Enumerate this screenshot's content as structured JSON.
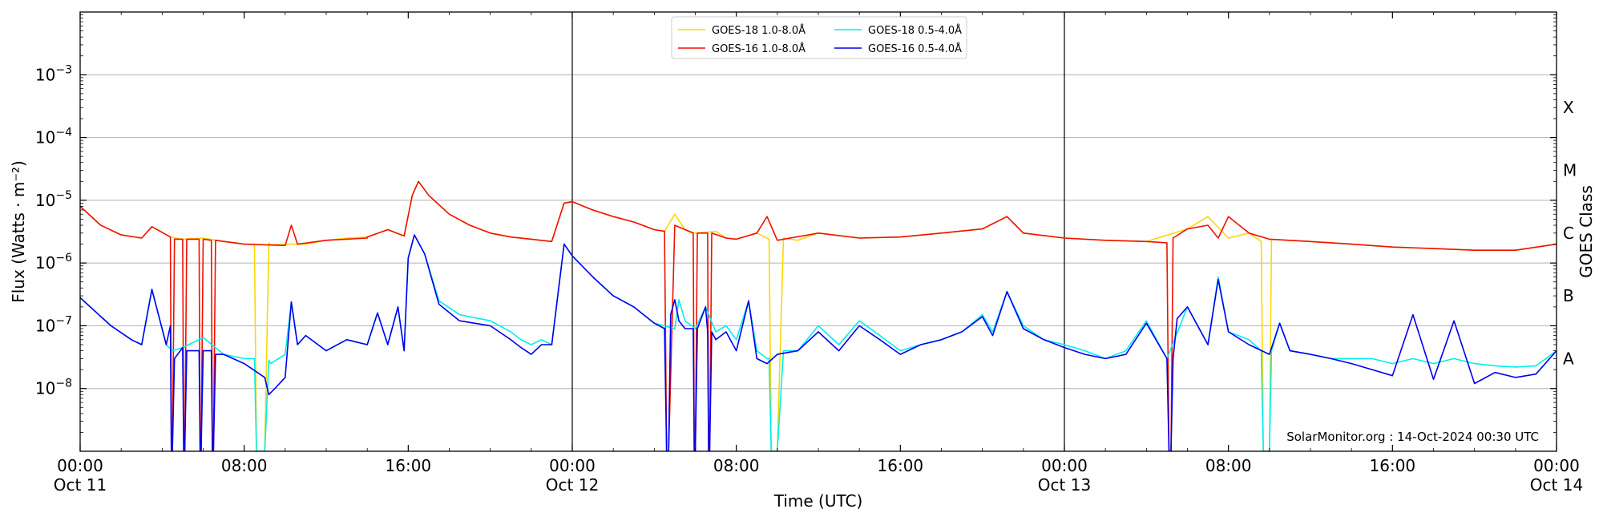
{
  "chart_data": {
    "type": "line",
    "ylabel": "Flux (Watts · m⁻²)",
    "xlabel": "Time (UTC)",
    "right_ylabel": "GOES Class",
    "y_scale": "log",
    "ylim": [
      1e-09,
      0.01
    ],
    "xlim": [
      "2024-10-11 00:00",
      "2024-10-14 00:00"
    ],
    "grid": "horizontal major decades",
    "legend_position": "top-center",
    "y_ticks": [
      {
        "value": 1e-08,
        "base": "10",
        "exp": "−8"
      },
      {
        "value": 1e-07,
        "base": "10",
        "exp": "−7"
      },
      {
        "value": 1e-06,
        "base": "10",
        "exp": "−6"
      },
      {
        "value": 1e-05,
        "base": "10",
        "exp": "−5"
      },
      {
        "value": 0.0001,
        "base": "10",
        "exp": "−4"
      },
      {
        "value": 0.001,
        "base": "10",
        "exp": "−3"
      }
    ],
    "x_ticks": [
      {
        "hours": 0,
        "time": "00:00",
        "date": "Oct 11"
      },
      {
        "hours": 8,
        "time": "08:00",
        "date": ""
      },
      {
        "hours": 16,
        "time": "16:00",
        "date": ""
      },
      {
        "hours": 24,
        "time": "00:00",
        "date": "Oct 12"
      },
      {
        "hours": 32,
        "time": "08:00",
        "date": ""
      },
      {
        "hours": 40,
        "time": "16:00",
        "date": ""
      },
      {
        "hours": 48,
        "time": "00:00",
        "date": "Oct 13"
      },
      {
        "hours": 56,
        "time": "08:00",
        "date": ""
      },
      {
        "hours": 64,
        "time": "16:00",
        "date": ""
      },
      {
        "hours": 72,
        "time": "00:00",
        "date": "Oct 14"
      }
    ],
    "day_boundaries": [
      24,
      48
    ],
    "goes_classes": [
      {
        "label": "A",
        "value": 3e-08
      },
      {
        "label": "B",
        "value": 3e-07
      },
      {
        "label": "C",
        "value": 3e-06
      },
      {
        "label": "M",
        "value": 3e-05
      },
      {
        "label": "X",
        "value": 0.0003
      }
    ],
    "credit": "SolarMonitor.org : 14-Oct-2024 00:30 UTC",
    "series": [
      {
        "name": "GOES-18 1.0-8.0Å",
        "color": "#ffd700",
        "x_hours": [
          0.0,
          1.0,
          2.0,
          3.0,
          3.5,
          4.4,
          5.0,
          6.0,
          7.0,
          8.0,
          8.5,
          8.6,
          9.0,
          9.2,
          9.3,
          10.0,
          11.0,
          12.0,
          13.0,
          14.0,
          15.0,
          15.8,
          16.2,
          16.5,
          17.0,
          18.0,
          19.0,
          20.0,
          21.0,
          22.0,
          23.0,
          23.6,
          24.0,
          25.0,
          26.0,
          27.0,
          28.0,
          28.5,
          29.0,
          29.5,
          30.0,
          31.0,
          31.5,
          32.0,
          33.0,
          33.6,
          33.7,
          34.0,
          34.3,
          35.0,
          36.0,
          38.0,
          40.0,
          42.0,
          44.0,
          45.2,
          46.0,
          48.0,
          50.0,
          52.0,
          54.0,
          55.0,
          56.0,
          57.0,
          57.6,
          57.7,
          58.0,
          58.1,
          60.0,
          62.0,
          64.0,
          66.0,
          68.0,
          70.0,
          72.0
        ],
        "y_flux": [
          8e-06,
          4e-06,
          2.8e-06,
          2.5e-06,
          3.8e-06,
          2.6e-06,
          2.4e-06,
          2.5e-06,
          2.2e-06,
          2e-06,
          2e-06,
          1e-09,
          1e-09,
          2.1e-06,
          1.95e-06,
          2e-06,
          2e-06,
          2.3e-06,
          2.5e-06,
          2.6e-06,
          3.4e-06,
          2.7e-06,
          1.2e-05,
          2e-05,
          1.2e-05,
          6e-06,
          4e-06,
          3e-06,
          2.6e-06,
          2.4e-06,
          2.2e-06,
          9e-06,
          9.5e-06,
          7e-06,
          5.5e-06,
          4.5e-06,
          3.4e-06,
          3.2e-06,
          6e-06,
          3.4e-06,
          3e-06,
          3.2e-06,
          2.5e-06,
          2.4e-06,
          3e-06,
          2.4e-06,
          1e-09,
          1e-09,
          2.5e-06,
          2.3e-06,
          3e-06,
          2.5e-06,
          2.6e-06,
          3e-06,
          3.5e-06,
          5.5e-06,
          3e-06,
          2.5e-06,
          2.3e-06,
          2.2e-06,
          3.5e-06,
          5.5e-06,
          2.5e-06,
          3e-06,
          2.2e-06,
          1e-09,
          1e-09,
          2.4e-06,
          2.2e-06,
          2e-06,
          1.8e-06,
          1.7e-06,
          1.6e-06,
          1.6e-06,
          2e-06
        ]
      },
      {
        "name": "GOES-16 1.0-8.0Å",
        "color": "#ee1100",
        "x_hours": [
          0.0,
          1.0,
          2.0,
          3.0,
          3.5,
          4.4,
          4.45,
          4.5,
          4.6,
          5.0,
          5.05,
          5.1,
          5.2,
          5.8,
          5.85,
          5.9,
          6.0,
          6.4,
          6.45,
          6.5,
          6.6,
          8.0,
          10.0,
          10.3,
          10.6,
          12.0,
          14.0,
          14.0,
          15.0,
          15.8,
          16.2,
          16.5,
          17.0,
          18.0,
          19.0,
          20.0,
          21.0,
          22.0,
          23.0,
          23.6,
          24.0,
          25.0,
          26.0,
          27.0,
          28.0,
          28.5,
          28.6,
          28.7,
          29.0,
          29.0,
          29.5,
          29.9,
          29.95,
          30.0,
          30.1,
          30.6,
          30.65,
          30.7,
          30.8,
          31.5,
          32.0,
          33.0,
          33.5,
          34.0,
          36.0,
          38.0,
          40.0,
          42.0,
          44.0,
          45.2,
          46.0,
          48.0,
          50.0,
          52.0,
          53.0,
          53.1,
          53.2,
          53.3,
          54.0,
          55.0,
          55.5,
          56.0,
          57.0,
          58.0,
          60.0,
          62.0,
          64.0,
          66.0,
          68.0,
          70.0,
          72.0
        ],
        "y_flux": [
          8e-06,
          4e-06,
          2.8e-06,
          2.5e-06,
          3.8e-06,
          2.6e-06,
          1e-09,
          1e-09,
          2.4e-06,
          2.4e-06,
          1e-09,
          1e-09,
          2.4e-06,
          2.4e-06,
          1e-09,
          1e-09,
          2.4e-06,
          2.3e-06,
          1e-09,
          1e-09,
          2.3e-06,
          2e-06,
          1.9e-06,
          4e-06,
          2e-06,
          2.3e-06,
          2.5e-06,
          2.6e-06,
          3.4e-06,
          2.7e-06,
          1.2e-05,
          2e-05,
          1.2e-05,
          6e-06,
          4e-06,
          3e-06,
          2.6e-06,
          2.4e-06,
          2.2e-06,
          9e-06,
          9.5e-06,
          7e-06,
          5.5e-06,
          4.5e-06,
          3.4e-06,
          3.2e-06,
          1e-09,
          1e-09,
          4e-06,
          4e-06,
          3.4e-06,
          3e-06,
          1e-09,
          1e-09,
          3e-06,
          3e-06,
          1e-09,
          1e-09,
          3e-06,
          2.5e-06,
          2.4e-06,
          3e-06,
          5.5e-06,
          2.3e-06,
          3e-06,
          2.5e-06,
          2.6e-06,
          3e-06,
          3.5e-06,
          5.5e-06,
          3e-06,
          2.5e-06,
          2.3e-06,
          2.2e-06,
          2.1e-06,
          1e-09,
          1e-09,
          2.5e-06,
          3.5e-06,
          4e-06,
          2.5e-06,
          5.5e-06,
          3e-06,
          2.4e-06,
          2.2e-06,
          2e-06,
          1.8e-06,
          1.7e-06,
          1.6e-06,
          1.6e-06,
          2e-06
        ]
      },
      {
        "name": "GOES-18 0.5-4.0Å",
        "color": "#00eeee",
        "x_hours": [
          0.0,
          1.5,
          2.5,
          3.0,
          3.5,
          4.2,
          4.5,
          5.0,
          6.0,
          7.0,
          8.0,
          8.5,
          8.6,
          9.0,
          9.2,
          9.3,
          10.0,
          10.3,
          10.6,
          11.0,
          12.0,
          13.0,
          14.0,
          14.5,
          15.0,
          15.5,
          15.8,
          16.0,
          16.3,
          16.8,
          17.5,
          18.5,
          20.0,
          21.0,
          21.5,
          22.0,
          22.5,
          23.0,
          23.6,
          24.0,
          25.0,
          26.0,
          27.0,
          28.0,
          29.0,
          29.2,
          29.5,
          30.0,
          30.5,
          31.0,
          31.5,
          32.0,
          32.6,
          33.0,
          33.5,
          33.6,
          33.7,
          34.0,
          34.3,
          35.0,
          36.0,
          37.0,
          38.0,
          39.0,
          40.0,
          41.0,
          42.0,
          43.0,
          44.0,
          44.5,
          45.2,
          46.0,
          47.0,
          48.0,
          49.0,
          50.0,
          51.0,
          52.0,
          53.0,
          54.0,
          55.0,
          55.5,
          56.0,
          57.0,
          57.6,
          57.7,
          58.0,
          58.1,
          58.5,
          59.0,
          60.0,
          61.0,
          62.0,
          63.0,
          64.0,
          65.0,
          66.0,
          67.0,
          68.0,
          69.0,
          70.0,
          71.0,
          72.0
        ],
        "y_flux": [
          2.8e-07,
          1e-07,
          6e-08,
          5e-08,
          3.8e-07,
          5e-08,
          4e-08,
          4.5e-08,
          6.5e-08,
          3.5e-08,
          3e-08,
          3e-08,
          1e-09,
          1e-09,
          2.8e-08,
          2.5e-08,
          3.5e-08,
          2.4e-07,
          5e-08,
          7e-08,
          4e-08,
          6e-08,
          5e-08,
          1.6e-07,
          5e-08,
          2e-07,
          4e-08,
          1.2e-06,
          2.8e-06,
          1.4e-06,
          2.5e-07,
          1.5e-07,
          1.2e-07,
          8e-08,
          6e-08,
          5e-08,
          6e-08,
          5e-08,
          2e-06,
          1.3e-06,
          6e-07,
          3e-07,
          2e-07,
          1.1e-07,
          9e-08,
          2.6e-07,
          1.2e-07,
          9e-08,
          2e-07,
          8e-08,
          1e-07,
          6e-08,
          2.5e-07,
          4e-08,
          3e-08,
          3e-08,
          1e-09,
          1e-09,
          4e-08,
          4e-08,
          1e-07,
          5e-08,
          1.2e-07,
          7e-08,
          4e-08,
          5e-08,
          6e-08,
          8e-08,
          1.5e-07,
          8e-08,
          3.5e-07,
          1e-07,
          6e-08,
          5e-08,
          4e-08,
          3e-08,
          4e-08,
          1.2e-07,
          3e-08,
          2e-07,
          5e-08,
          6e-07,
          8e-08,
          6e-08,
          4e-08,
          1e-09,
          1e-09,
          4e-08,
          1.1e-07,
          4e-08,
          3.5e-08,
          3e-08,
          3e-08,
          3e-08,
          2.5e-08,
          3e-08,
          2.5e-08,
          3e-08,
          2.5e-08,
          2.3e-08,
          2.2e-08,
          2.3e-08,
          4e-08
        ]
      },
      {
        "name": "GOES-16 0.5-4.0Å",
        "color": "#0000ee",
        "x_hours": [
          0.0,
          1.5,
          2.5,
          3.0,
          3.5,
          4.2,
          4.4,
          4.45,
          4.5,
          4.6,
          5.0,
          5.05,
          5.1,
          5.2,
          5.8,
          5.85,
          5.9,
          6.0,
          6.4,
          6.45,
          6.5,
          6.6,
          7.0,
          8.0,
          9.0,
          9.2,
          9.5,
          10.0,
          10.3,
          10.6,
          11.0,
          12.0,
          13.0,
          14.0,
          14.5,
          15.0,
          15.5,
          15.8,
          16.0,
          16.3,
          16.8,
          17.5,
          18.5,
          20.0,
          21.0,
          21.5,
          22.0,
          22.5,
          23.0,
          23.6,
          24.0,
          25.0,
          26.0,
          27.0,
          28.0,
          28.5,
          28.6,
          28.7,
          28.8,
          29.0,
          29.2,
          29.5,
          29.9,
          29.95,
          30.0,
          30.1,
          30.5,
          30.6,
          30.65,
          30.7,
          30.8,
          31.0,
          31.5,
          32.0,
          32.6,
          33.0,
          33.5,
          34.0,
          35.0,
          36.0,
          37.0,
          38.0,
          39.0,
          40.0,
          41.0,
          42.0,
          43.0,
          44.0,
          44.5,
          45.2,
          46.0,
          47.0,
          48.0,
          49.0,
          50.0,
          51.0,
          52.0,
          53.0,
          53.1,
          53.2,
          53.3,
          53.5,
          54.0,
          55.0,
          55.5,
          56.0,
          57.0,
          58.0,
          58.5,
          59.0,
          60.0,
          61.0,
          62.0,
          63.0,
          64.0,
          65.0,
          66.0,
          67.0,
          68.0,
          69.0,
          70.0,
          71.0,
          72.0
        ],
        "y_flux": [
          2.8e-07,
          1e-07,
          6e-08,
          5e-08,
          3.8e-07,
          5e-08,
          1e-07,
          1e-09,
          1e-09,
          3e-08,
          4.5e-08,
          1e-09,
          1e-09,
          4e-08,
          4e-08,
          1e-09,
          1e-09,
          4e-08,
          4e-08,
          1e-09,
          1e-09,
          3.5e-08,
          3.5e-08,
          2.5e-08,
          1.5e-08,
          8e-09,
          1e-08,
          1.5e-08,
          2.4e-07,
          5e-08,
          7e-08,
          4e-08,
          6e-08,
          5e-08,
          1.6e-07,
          5e-08,
          2e-07,
          4e-08,
          1.2e-06,
          2.8e-06,
          1.4e-06,
          2.2e-07,
          1.2e-07,
          1e-07,
          6e-08,
          4.5e-08,
          3.5e-08,
          5e-08,
          5e-08,
          2e-06,
          1.3e-06,
          6e-07,
          3e-07,
          2e-07,
          1.1e-07,
          9e-08,
          1e-09,
          1e-09,
          1.5e-07,
          2.6e-07,
          1.2e-07,
          9e-08,
          9e-08,
          1e-09,
          1e-09,
          9e-08,
          2e-07,
          8e-08,
          1e-09,
          1e-09,
          8e-08,
          6e-08,
          8e-08,
          4e-08,
          2.5e-07,
          3e-08,
          2.5e-08,
          3.5e-08,
          4e-08,
          8e-08,
          4e-08,
          1e-07,
          6e-08,
          3.5e-08,
          5e-08,
          6e-08,
          8e-08,
          1.4e-07,
          7e-08,
          3.5e-07,
          9e-08,
          6e-08,
          4.5e-08,
          3.5e-08,
          3e-08,
          3.5e-08,
          1.1e-07,
          3e-08,
          1e-09,
          1e-09,
          3e-08,
          1.3e-07,
          2e-07,
          5e-08,
          5.5e-07,
          8e-08,
          5e-08,
          3.5e-08,
          1.1e-07,
          4e-08,
          3.5e-08,
          3e-08,
          2.5e-08,
          2e-08,
          1.6e-08,
          1.5e-07,
          1.4e-08,
          1.2e-07,
          1.2e-08,
          1.8e-08,
          1.5e-08,
          1.7e-08,
          4e-08
        ]
      }
    ]
  }
}
